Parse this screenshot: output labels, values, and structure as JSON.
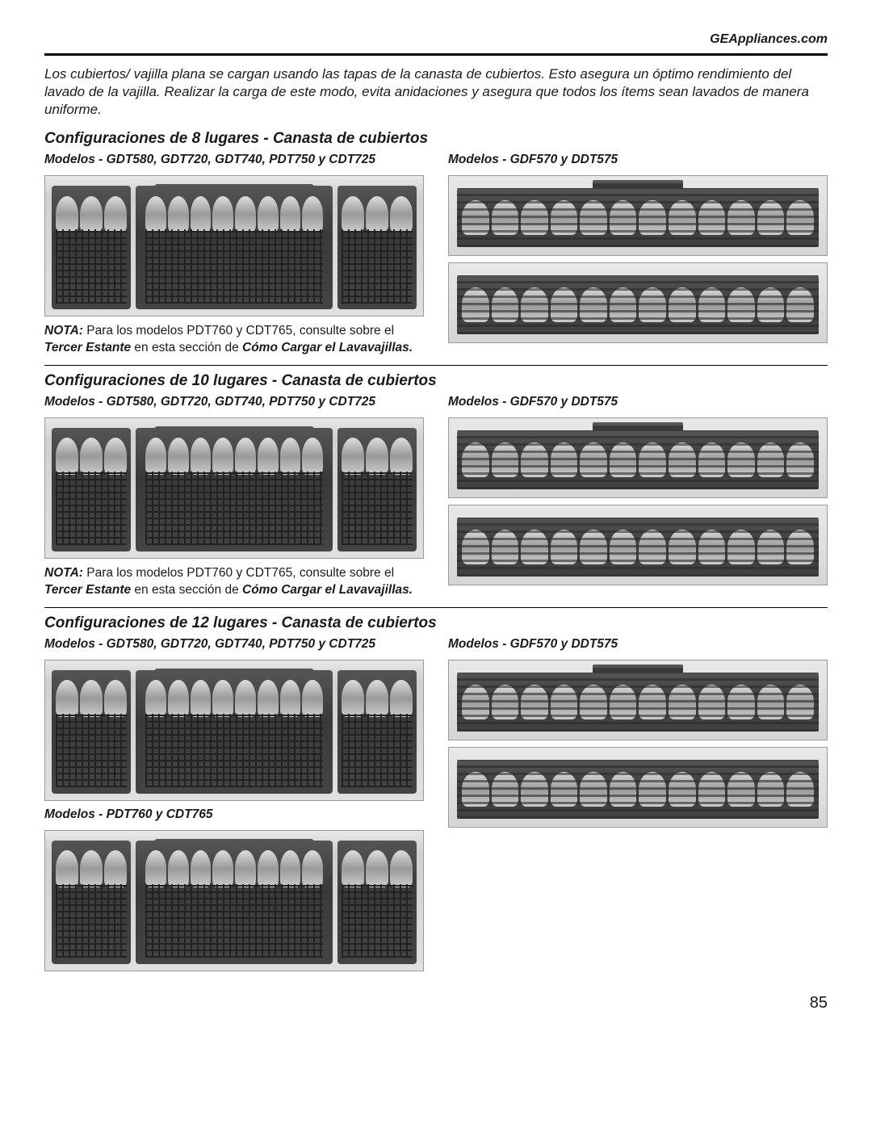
{
  "header": {
    "site": "GEAppliances.com"
  },
  "intro": "Los cubiertos/ vajilla plana se cargan usando las tapas de la canasta de cubiertos. Esto asegura un óptimo rendimiento del lavado de la vajilla. Realizar la carga de este modo, evita anidaciones y asegura que todos los ítems sean lavados de manera uniforme.",
  "sections": {
    "s8": {
      "title_prefix": "Configuraciones de 8 lugares - ",
      "title_bold": "Canasta de cubiertos",
      "left_models": "Modelos - GDT580, GDT720, GDT740, PDT750 y CDT725",
      "right_models": "Modelos - GDF570 y DDT575",
      "nota_label": "NOTA:",
      "nota_text1": " Para los modelos PDT760 y CDT765, consulte sobre el ",
      "nota_em1": "Tercer Estante",
      "nota_text2": " en esta sección de ",
      "nota_em2": "Cómo Cargar el Lavavajillas.",
      "nota_text3": ""
    },
    "s10": {
      "title_prefix": "Configuraciones de 10 lugares - ",
      "title_bold": "Canasta de cubiertos",
      "left_models": "Modelos - GDT580, GDT720, GDT740, PDT750 y CDT725",
      "right_models": "Modelos - GDF570 y DDT575",
      "nota_label": "NOTA:",
      "nota_text1": " Para los modelos PDT760 y CDT765, consulte sobre el ",
      "nota_em1": "Tercer Estante",
      "nota_text2": " en esta sección de ",
      "nota_em2": "Cómo Cargar el Lavavajillas.",
      "nota_text3": ""
    },
    "s12": {
      "title_prefix": "Configuraciones de 12 lugares - ",
      "title_bold": "Canasta de cubiertos",
      "left_models": "Modelos - GDT580, GDT720, GDT740, PDT750 y CDT725",
      "right_models": "Modelos - GDF570 y DDT575",
      "extra_models": "Modelos - PDT760 y CDT765"
    }
  },
  "page_number": "85"
}
